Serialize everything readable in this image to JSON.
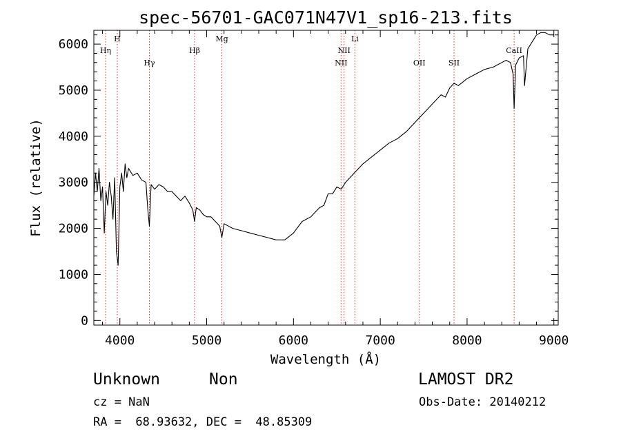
{
  "chart_data": {
    "type": "line",
    "title": "spec-56701-GAC071N47V1_sp16-213.fits",
    "xlabel": "Wavelength (Å)",
    "ylabel": "Flux (relative)",
    "xlim": [
      3700,
      9050
    ],
    "ylim": [
      -100,
      6300
    ],
    "xticks": [
      4000,
      5000,
      6000,
      7000,
      8000,
      9000
    ],
    "yticks": [
      0,
      1000,
      2000,
      3000,
      4000,
      5000,
      6000
    ],
    "grid": false,
    "line_color": "#000000",
    "marker_color": "#cc3333",
    "spectral_lines": [
      {
        "label": "Hη",
        "wavelength": 3835,
        "label_row": 2
      },
      {
        "label": "H",
        "wavelength": 3970,
        "label_row": 1
      },
      {
        "label": "Hγ",
        "wavelength": 4340,
        "label_row": 3
      },
      {
        "label": "Hβ",
        "wavelength": 4861,
        "label_row": 2
      },
      {
        "label": "Mg",
        "wavelength": 5175,
        "label_row": 1
      },
      {
        "label": "NII",
        "wavelength": 6548,
        "label_row": 3
      },
      {
        "label": "NII",
        "wavelength": 6583,
        "label_row": 2
      },
      {
        "label": "Li",
        "wavelength": 6708,
        "label_row": 1
      },
      {
        "label": "OII",
        "wavelength": 7450,
        "label_row": 3
      },
      {
        "label": "SII",
        "wavelength": 7850,
        "label_row": 3
      },
      {
        "label": "CaII",
        "wavelength": 8542,
        "label_row": 2
      }
    ],
    "series": [
      {
        "x": [
          3700,
          3720,
          3740,
          3760,
          3780,
          3800,
          3820,
          3840,
          3860,
          3880,
          3900,
          3920,
          3940,
          3960,
          3980,
          4000,
          4020,
          4040,
          4060,
          4080,
          4100,
          4150,
          4200,
          4250,
          4300,
          4320,
          4340,
          4360,
          4400,
          4450,
          4500,
          4550,
          4600,
          4650,
          4700,
          4750,
          4800,
          4840,
          4861,
          4880,
          4920,
          4960,
          5000,
          5050,
          5100,
          5150,
          5175,
          5200,
          5250,
          5300,
          5400,
          5500,
          5600,
          5700,
          5800,
          5900,
          6000,
          6100,
          6200,
          6300,
          6350,
          6400,
          6450,
          6500,
          6550,
          6600,
          6650,
          6700,
          6800,
          6900,
          7000,
          7100,
          7200,
          7300,
          7400,
          7450,
          7500,
          7600,
          7700,
          7750,
          7800,
          7850,
          7900,
          8000,
          8100,
          8200,
          8300,
          8400,
          8450,
          8500,
          8530,
          8542,
          8560,
          8600,
          8650,
          8662,
          8700,
          8750,
          8800,
          8850,
          8900,
          8950,
          9000
        ],
        "y": [
          2700,
          3200,
          2800,
          3300,
          2600,
          2900,
          1900,
          2800,
          2500,
          3000,
          2700,
          2200,
          3100,
          1500,
          1200,
          2900,
          3200,
          2800,
          3400,
          3100,
          3300,
          3150,
          3200,
          3050,
          3000,
          2450,
          2050,
          2950,
          2850,
          2950,
          2900,
          2800,
          2800,
          2700,
          2600,
          2700,
          2550,
          2400,
          2150,
          2450,
          2400,
          2300,
          2250,
          2250,
          2150,
          2050,
          1800,
          2100,
          2050,
          2000,
          1950,
          1900,
          1850,
          1800,
          1750,
          1750,
          1900,
          2150,
          2250,
          2450,
          2500,
          2750,
          2750,
          2900,
          2850,
          3000,
          3100,
          3200,
          3400,
          3550,
          3700,
          3850,
          3950,
          4100,
          4300,
          4400,
          4500,
          4700,
          4900,
          4850,
          5050,
          5150,
          5100,
          5250,
          5350,
          5450,
          5500,
          5600,
          5650,
          5600,
          5350,
          4600,
          5550,
          5700,
          5750,
          5100,
          5900,
          6050,
          6200,
          6250,
          6250,
          6200,
          6200
        ]
      }
    ]
  },
  "footer": {
    "object_class": "Unknown",
    "subclass": "Non",
    "survey": "LAMOST DR2",
    "cz": "cz = NaN",
    "obs_date": "Obs-Date: 20140212",
    "coords": "RA =  68.93632, DEC =  48.85309"
  }
}
